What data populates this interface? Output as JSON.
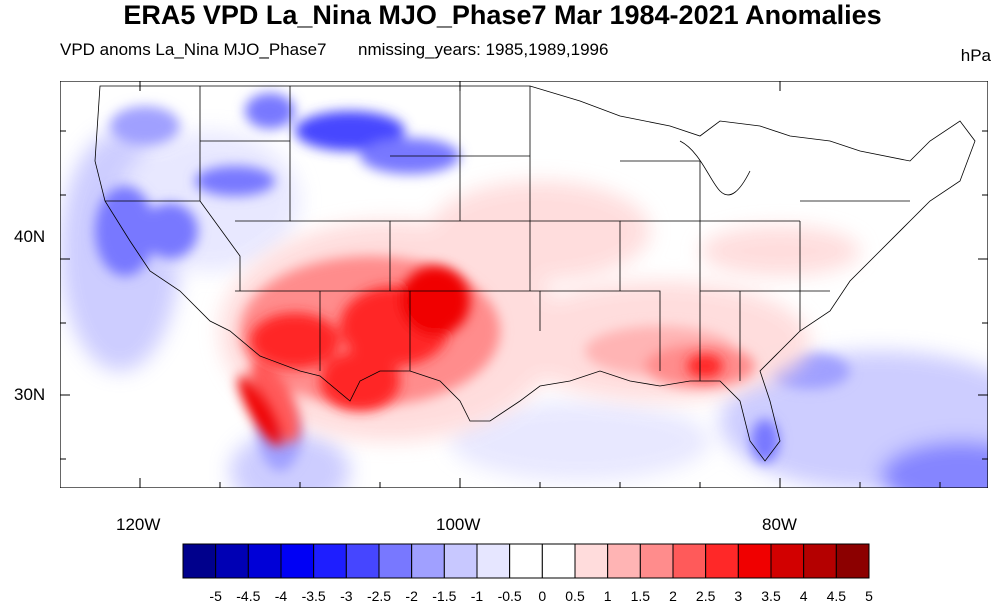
{
  "title": "ERA5 VPD La_Nina MJO_Phase7 Mar 1984-2021 Anomalies",
  "subtitle_left": "VPD anoms La_Nina MJO_Phase7",
  "subtitle_center": "nmissing_years: 1985,1989,1996",
  "units": "hPa",
  "lat_labels": [
    "40N",
    "30N"
  ],
  "lon_labels": [
    "120W",
    "100W",
    "80W"
  ],
  "colorbar": {
    "labels": [
      "-5",
      "-4.5",
      "-4",
      "-3.5",
      "-3",
      "-2.5",
      "-2",
      "-1.5",
      "-1",
      "-0.5",
      "0",
      "0.5",
      "1",
      "1.5",
      "2",
      "2.5",
      "3",
      "3.5",
      "4",
      "4.5",
      "5"
    ],
    "colors": [
      "#00008c",
      "#0000b4",
      "#0000d7",
      "#0000f5",
      "#1e1eff",
      "#4646ff",
      "#7878ff",
      "#a0a0ff",
      "#c8c8ff",
      "#e6e6ff",
      "#ffffff",
      "#ffffff",
      "#ffdcdc",
      "#ffb4b4",
      "#ff8c8c",
      "#ff5a5a",
      "#ff2828",
      "#f00000",
      "#d20000",
      "#b40000",
      "#8c0000"
    ]
  },
  "anomaly_regions": [
    {
      "name": "southwest-desert-high",
      "sign": "positive",
      "level": 3.5
    },
    {
      "name": "texas-new-mexico-high",
      "sign": "positive",
      "level": 3.0
    },
    {
      "name": "baja-california-high",
      "sign": "positive",
      "level": 3.5
    },
    {
      "name": "southeast-georgia-high",
      "sign": "positive",
      "level": 1.5
    },
    {
      "name": "pacific-northwest-low",
      "sign": "negative",
      "level": -2.0
    },
    {
      "name": "california-sierra-low",
      "sign": "negative",
      "level": -2.0
    },
    {
      "name": "montana-low",
      "sign": "negative",
      "level": -3.0
    },
    {
      "name": "atlantic-ocean-low",
      "sign": "negative",
      "level": -1.5
    },
    {
      "name": "florida-low",
      "sign": "negative",
      "level": -1.5
    },
    {
      "name": "gulf-of-california-low",
      "sign": "negative",
      "level": -1.5
    }
  ]
}
